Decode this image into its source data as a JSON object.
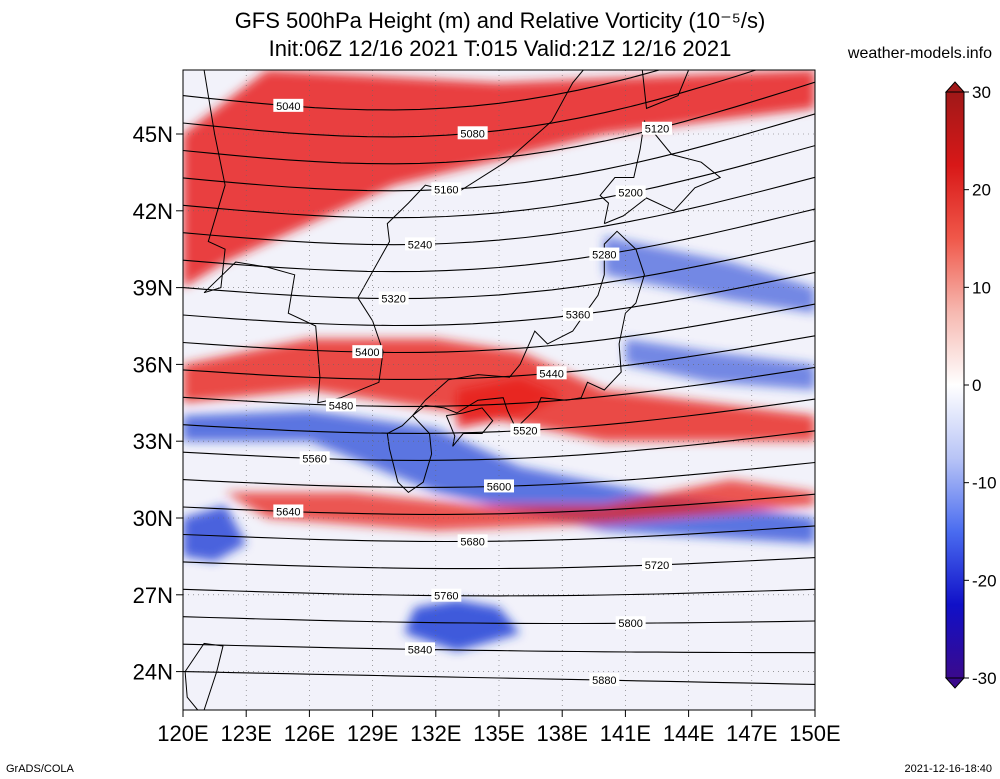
{
  "title_line1": "GFS 500hPa Height (m) and Relative Vorticity (10⁻⁵/s)",
  "title_line2": "Init:06Z 12/16 2021 T:015 Valid:21Z 12/16 2021",
  "site": "weather-models.info",
  "credit_left": "GrADS/COLA",
  "credit_right": "2021-12-16-18:40",
  "map": {
    "lat_labels": [
      "45N",
      "42N",
      "39N",
      "36N",
      "33N",
      "30N",
      "27N",
      "24N"
    ],
    "lon_labels": [
      "120E",
      "123E",
      "126E",
      "129E",
      "132E",
      "135E",
      "138E",
      "141E",
      "144E",
      "147E",
      "150E"
    ],
    "lat_range": [
      22.5,
      47.5
    ],
    "lon_range": [
      120,
      150
    ],
    "contours": [
      {
        "label": "5040"
      },
      {
        "label": "5080"
      },
      {
        "label": "5120"
      },
      {
        "label": "5160"
      },
      {
        "label": "5200"
      },
      {
        "label": "5240"
      },
      {
        "label": "5280"
      },
      {
        "label": "5320"
      },
      {
        "label": "5360"
      },
      {
        "label": "5400"
      },
      {
        "label": "5440"
      },
      {
        "label": "5480"
      },
      {
        "label": "5520"
      },
      {
        "label": "5560"
      },
      {
        "label": "5600"
      },
      {
        "label": "5640"
      },
      {
        "label": "5680"
      },
      {
        "label": "5720"
      },
      {
        "label": "5760"
      },
      {
        "label": "5800"
      },
      {
        "label": "5840"
      },
      {
        "label": "5880"
      }
    ],
    "colors": {
      "positive": "#e8201c",
      "negative": "#1f3fd6",
      "neutral": "#f4f4fb"
    }
  },
  "colorbar": {
    "ticks": [
      "30",
      "20",
      "10",
      "0",
      "-10",
      "-20",
      "-30"
    ],
    "range": [
      -30,
      30
    ],
    "stops": [
      "#3a0a8c",
      "#1010c8",
      "#4a6cf0",
      "#b8c4f6",
      "#ffffff",
      "#f6b8b0",
      "#f0584a",
      "#d81818",
      "#a01818"
    ]
  }
}
